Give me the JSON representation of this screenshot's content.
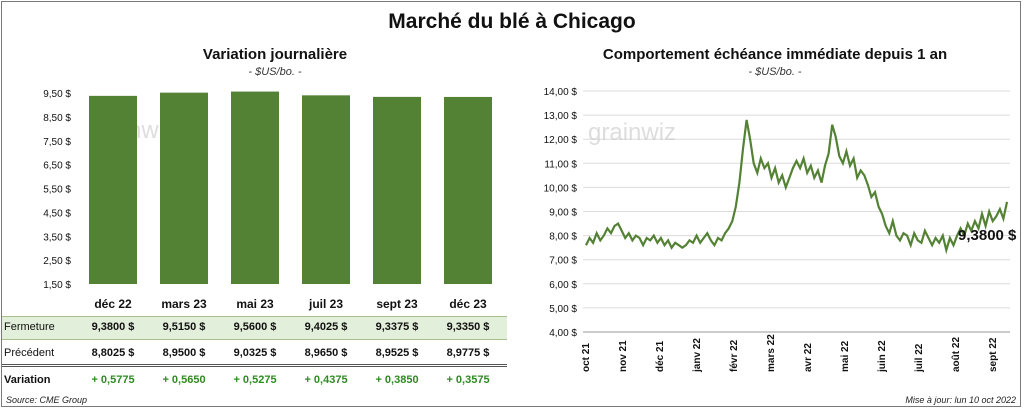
{
  "title": "Marché du blé à Chicago",
  "left_panel": {
    "title": "Variation journalière",
    "units": "- $US/bo. -",
    "watermark": "grainwiz"
  },
  "right_panel": {
    "title": "Comportement échéance immédiate depuis 1 an",
    "units": "- $US/bo. -",
    "watermark": "grainwiz",
    "last_value_label": "9,3800 $"
  },
  "table": {
    "rows": [
      {
        "label": "Fermeture",
        "values": [
          "9,3800  $",
          "9,5150  $",
          "9,5600  $",
          "9,4025  $",
          "9,3375  $",
          "9,3350  $"
        ]
      },
      {
        "label": "Précédent",
        "values": [
          "8,8025  $",
          "8,9500  $",
          "9,0325  $",
          "8,9650  $",
          "8,9525  $",
          "8,9775  $"
        ]
      },
      {
        "label": "Variation",
        "values": [
          "+ 0,5775",
          "+ 0,5650",
          "+ 0,5275",
          "+ 0,4375",
          "+ 0,3850",
          "+ 0,3575"
        ]
      }
    ]
  },
  "footer": {
    "source": "Source: CME Group",
    "updated": "Mise à jour: lun 10 oct 2022"
  },
  "colors": {
    "bar": "#548235",
    "line": "#548235",
    "highlight_row": "#e2efda",
    "positive": "#2e8b22"
  },
  "chart_data": [
    {
      "type": "bar",
      "title": "Variation journalière",
      "categories": [
        "déc 22",
        "mars 23",
        "mai 23",
        "juil 23",
        "sept 23",
        "déc 23"
      ],
      "values": [
        9.38,
        9.515,
        9.56,
        9.4025,
        9.3375,
        9.335
      ],
      "ylim": [
        1.5,
        9.5
      ],
      "yticks": [
        "1,50 $",
        "2,50 $",
        "3,50 $",
        "4,50 $",
        "5,50 $",
        "6,50 $",
        "7,50 $",
        "8,50 $",
        "9,50 $"
      ],
      "ytick_values": [
        1.5,
        2.5,
        3.5,
        4.5,
        5.5,
        6.5,
        7.5,
        8.5,
        9.5
      ],
      "grid": false
    },
    {
      "type": "line",
      "title": "Comportement échéance immédiate depuis 1 an",
      "xlabels": [
        "oct 21",
        "nov 21",
        "déc 21",
        "janv 22",
        "févr 22",
        "mars 22",
        "avr 22",
        "mai 22",
        "juin 22",
        "juil 22",
        "août 22",
        "sept 22"
      ],
      "ylim": [
        4.0,
        14.0
      ],
      "yticks": [
        "4,00 $",
        "5,00 $",
        "6,00 $",
        "7,00 $",
        "8,00 $",
        "9,00 $",
        "10,00 $",
        "11,00 $",
        "12,00 $",
        "13,00 $",
        "14,00 $"
      ],
      "ytick_values": [
        4,
        5,
        6,
        7,
        8,
        9,
        10,
        11,
        12,
        13,
        14
      ],
      "grid": true,
      "series": [
        {
          "values": [
            7.6,
            7.9,
            7.7,
            8.1,
            7.8,
            8.0,
            8.3,
            8.1,
            8.4,
            8.5,
            8.2,
            7.9,
            8.1,
            7.8,
            8.0,
            7.9,
            7.6,
            7.9,
            7.8,
            8.0,
            7.7,
            7.9,
            7.6,
            7.8,
            7.5,
            7.7,
            7.6,
            7.5,
            7.6,
            7.8,
            7.7,
            8.0,
            7.7,
            7.9,
            8.1,
            7.8,
            7.6,
            7.9,
            7.8,
            8.1,
            8.3,
            8.6,
            9.2,
            10.2,
            11.6,
            12.8,
            12.0,
            11.0,
            10.6,
            11.2,
            10.8,
            11.0,
            10.4,
            10.8,
            10.2,
            10.5,
            10.0,
            10.4,
            10.8,
            11.1,
            10.8,
            11.2,
            10.6,
            10.9,
            10.4,
            10.7,
            10.2,
            10.9,
            11.4,
            12.6,
            12.1,
            11.3,
            11.0,
            11.5,
            10.9,
            11.2,
            10.4,
            10.7,
            10.5,
            10.1,
            9.6,
            9.8,
            9.2,
            8.9,
            8.4,
            8.1,
            8.6,
            8.0,
            7.8,
            8.1,
            8.0,
            7.6,
            8.1,
            7.8,
            7.7,
            8.2,
            7.9,
            7.6,
            7.9,
            7.7,
            8.0,
            7.4,
            7.9,
            7.6,
            8.0,
            8.3,
            8.0,
            8.5,
            8.2,
            8.6,
            8.3,
            8.9,
            8.4,
            9.0,
            8.6,
            8.8,
            9.1,
            8.7,
            9.4
          ]
        }
      ],
      "last_value": 9.38
    }
  ]
}
